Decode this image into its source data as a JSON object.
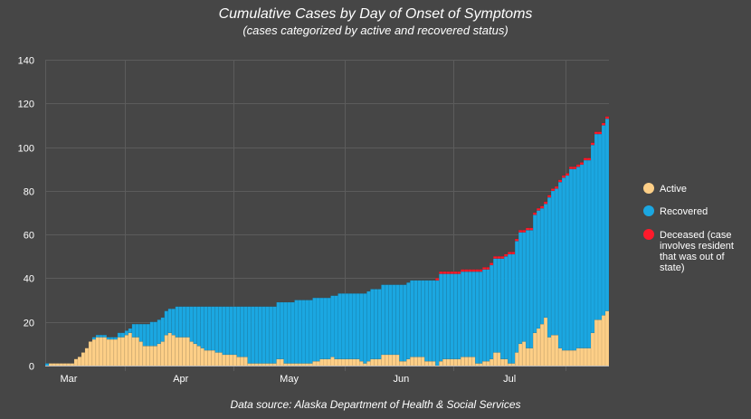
{
  "chart_data": {
    "type": "bar",
    "stacked": true,
    "title": "Cumulative Cases by Day of Onset of Symptoms",
    "subtitle": "(cases categorized by active and recovered status)",
    "source": "Data source: Alaska Department of Health & Social Services",
    "xlabel": "",
    "ylabel": "",
    "ylim": [
      0,
      140
    ],
    "yticks": [
      0,
      20,
      40,
      60,
      80,
      100,
      120,
      140
    ],
    "grid": true,
    "legend_position": "right",
    "x_ticks": [
      {
        "label": "Mar",
        "at": "Mar 16"
      },
      {
        "label": "Apr",
        "at": "Apr 16"
      },
      {
        "label": "May",
        "at": "May 16"
      },
      {
        "label": "Jun",
        "at": "Jun 16"
      },
      {
        "label": "Jul",
        "at": "Jul 16"
      }
    ],
    "x": [
      "Mar 10",
      "Mar 11",
      "Mar 12",
      "Mar 13",
      "Mar 14",
      "Mar 15",
      "Mar 16",
      "Mar 17",
      "Mar 18",
      "Mar 19",
      "Mar 20",
      "Mar 21",
      "Mar 22",
      "Mar 23",
      "Mar 24",
      "Mar 25",
      "Mar 26",
      "Mar 27",
      "Mar 28",
      "Mar 29",
      "Mar 30",
      "Mar 31",
      "Apr 1",
      "Apr 2",
      "Apr 3",
      "Apr 4",
      "Apr 5",
      "Apr 6",
      "Apr 7",
      "Apr 8",
      "Apr 9",
      "Apr 10",
      "Apr 11",
      "Apr 12",
      "Apr 13",
      "Apr 14",
      "Apr 15",
      "Apr 16",
      "Apr 17",
      "Apr 18",
      "Apr 19",
      "Apr 20",
      "Apr 21",
      "Apr 22",
      "Apr 23",
      "Apr 24",
      "Apr 25",
      "Apr 26",
      "Apr 27",
      "Apr 28",
      "Apr 29",
      "Apr 30",
      "May 1",
      "May 2",
      "May 3",
      "May 4",
      "May 5",
      "May 6",
      "May 7",
      "May 8",
      "May 9",
      "May 10",
      "May 11",
      "May 12",
      "May 13",
      "May 14",
      "May 15",
      "May 16",
      "May 17",
      "May 18",
      "May 19",
      "May 20",
      "May 21",
      "May 22",
      "May 23",
      "May 24",
      "May 25",
      "May 26",
      "May 27",
      "May 28",
      "May 29",
      "May 30",
      "May 31",
      "Jun 1",
      "Jun 2",
      "Jun 3",
      "Jun 4",
      "Jun 5",
      "Jun 6",
      "Jun 7",
      "Jun 8",
      "Jun 9",
      "Jun 10",
      "Jun 11",
      "Jun 12",
      "Jun 13",
      "Jun 14",
      "Jun 15",
      "Jun 16",
      "Jun 17",
      "Jun 18",
      "Jun 19",
      "Jun 20",
      "Jun 21",
      "Jun 22",
      "Jun 23",
      "Jun 24",
      "Jun 25",
      "Jun 26",
      "Jun 27",
      "Jun 28",
      "Jun 29",
      "Jun 30",
      "Jul 1",
      "Jul 2",
      "Jul 3",
      "Jul 4",
      "Jul 5",
      "Jul 6",
      "Jul 7",
      "Jul 8",
      "Jul 9",
      "Jul 10",
      "Jul 11",
      "Jul 12",
      "Jul 13",
      "Jul 14",
      "Jul 15",
      "Jul 16",
      "Jul 17",
      "Jul 18",
      "Jul 19",
      "Jul 20",
      "Jul 21",
      "Jul 22",
      "Jul 23",
      "Jul 24",
      "Jul 25",
      "Jul 26",
      "Jul 27",
      "Jul 28",
      "Jul 29",
      "Jul 30",
      "Jul 31",
      "Aug 1",
      "Aug 2",
      "Aug 3",
      "Aug 4",
      "Aug 5",
      "Aug 6",
      "Aug 7",
      "Aug 8",
      "Aug 9",
      "Aug 10",
      "Aug 11",
      "Aug 12"
    ],
    "series": [
      {
        "name": "Active",
        "color": "#fdcf87",
        "values": [
          0,
          1,
          1,
          1,
          1,
          1,
          1,
          1,
          3,
          4,
          6,
          8,
          11,
          12,
          13,
          13,
          13,
          12,
          12,
          12,
          13,
          13,
          14,
          15,
          13,
          13,
          11,
          9,
          9,
          9,
          9,
          10,
          11,
          14,
          15,
          14,
          13,
          13,
          13,
          13,
          11,
          10,
          9,
          8,
          7,
          7,
          7,
          6,
          6,
          5,
          5,
          5,
          5,
          4,
          4,
          4,
          1,
          1,
          1,
          1,
          1,
          1,
          1,
          1,
          3,
          3,
          1,
          1,
          1,
          1,
          1,
          1,
          1,
          1,
          2,
          2,
          3,
          3,
          3,
          4,
          3,
          3,
          3,
          3,
          3,
          3,
          3,
          2,
          1,
          2,
          3,
          3,
          3,
          5,
          5,
          5,
          5,
          5,
          2,
          2,
          3,
          4,
          4,
          4,
          4,
          2,
          2,
          2,
          0,
          2,
          3,
          3,
          3,
          3,
          3,
          4,
          4,
          4,
          4,
          1,
          1,
          2,
          2,
          3,
          6,
          6,
          3,
          3,
          1,
          1,
          6,
          10,
          11,
          8,
          8,
          15,
          17,
          19,
          22,
          13,
          14,
          14,
          8,
          7,
          7,
          7,
          7,
          8,
          8,
          8,
          8,
          15,
          21,
          21,
          23,
          25
        ]
      },
      {
        "name": "Recovered",
        "color": "#1ba7e1",
        "values": [
          1,
          0,
          0,
          0,
          0,
          0,
          0,
          0,
          0,
          0,
          0,
          0,
          0,
          1,
          1,
          1,
          1,
          1,
          1,
          1,
          2,
          2,
          2,
          2,
          6,
          6,
          8,
          10,
          10,
          11,
          11,
          11,
          11,
          11,
          11,
          12,
          14,
          14,
          14,
          14,
          16,
          17,
          18,
          19,
          20,
          20,
          20,
          21,
          21,
          22,
          22,
          22,
          22,
          23,
          23,
          23,
          26,
          26,
          26,
          26,
          26,
          26,
          26,
          26,
          26,
          26,
          28,
          28,
          28,
          29,
          29,
          29,
          29,
          29,
          29,
          29,
          28,
          28,
          28,
          28,
          29,
          30,
          30,
          30,
          30,
          30,
          30,
          31,
          32,
          32,
          32,
          32,
          32,
          32,
          32,
          32,
          32,
          32,
          35,
          35,
          35,
          35,
          35,
          35,
          35,
          37,
          37,
          37,
          39,
          40,
          39,
          39,
          39,
          39,
          39,
          39,
          39,
          39,
          39,
          42,
          42,
          42,
          42,
          43,
          43,
          43,
          46,
          47,
          50,
          50,
          51,
          51,
          50,
          54,
          54,
          54,
          54,
          53,
          52,
          64,
          66,
          67,
          76,
          79,
          80,
          83,
          83,
          83,
          84,
          86,
          86,
          86,
          85,
          85,
          87,
          88
        ]
      },
      {
        "name": "Deceased (case involves resident that was out of state)",
        "color": "#ff1a2b",
        "values": [
          0,
          0,
          0,
          0,
          0,
          0,
          0,
          0,
          0,
          0,
          0,
          0,
          0,
          0,
          0,
          0,
          0,
          0,
          0,
          0,
          0,
          0,
          0,
          0,
          0,
          0,
          0,
          0,
          0,
          0,
          0,
          0,
          0,
          0,
          0,
          0,
          0,
          0,
          0,
          0,
          0,
          0,
          0,
          0,
          0,
          0,
          0,
          0,
          0,
          0,
          0,
          0,
          0,
          0,
          0,
          0,
          0,
          0,
          0,
          0,
          0,
          0,
          0,
          0,
          0,
          0,
          0,
          0,
          0,
          0,
          0,
          0,
          0,
          0,
          0,
          0,
          0,
          0,
          0,
          0,
          0,
          0,
          0,
          0,
          0,
          0,
          0,
          0,
          0,
          0,
          0,
          0,
          0,
          0,
          0,
          0,
          0,
          0,
          0,
          0,
          0,
          0,
          0,
          0,
          0,
          0,
          0,
          0,
          1,
          1,
          1,
          1,
          1,
          1,
          1,
          1,
          1,
          1,
          1,
          1,
          1,
          1,
          1,
          1,
          1,
          1,
          1,
          1,
          1,
          1,
          1,
          1,
          1,
          1,
          1,
          1,
          1,
          1,
          1,
          1,
          1,
          1,
          1,
          1,
          1,
          1,
          1,
          1,
          1,
          1,
          1,
          1,
          1,
          1,
          1,
          1
        ]
      }
    ],
    "legend": {
      "active": "Active",
      "recovered": "Recovered",
      "deceased_lines": [
        "Deceased (case",
        "involves resident",
        "that was out of",
        "state)"
      ]
    }
  }
}
